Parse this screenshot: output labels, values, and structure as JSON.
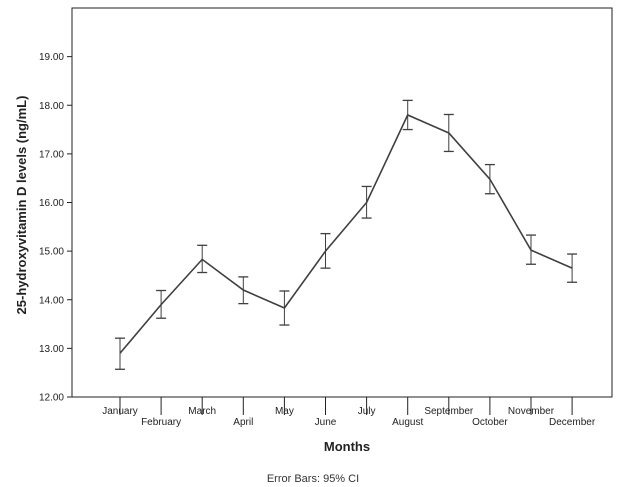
{
  "chart_data": {
    "type": "line",
    "title": "",
    "xlabel": "Months",
    "ylabel": "25-hydroxyvitamin D levels (ng/mL)",
    "categories": [
      "January",
      "February",
      "March",
      "April",
      "May",
      "June",
      "July",
      "August",
      "September",
      "October",
      "November",
      "December"
    ],
    "series": [
      {
        "values": [
          12.9,
          13.9,
          14.83,
          14.2,
          13.83,
          15.0,
          16.0,
          17.8,
          17.43,
          16.48,
          15.02,
          14.65
        ],
        "ci_lower": [
          12.57,
          13.62,
          14.56,
          13.92,
          13.48,
          14.65,
          15.68,
          17.5,
          17.05,
          16.18,
          14.73,
          14.36
        ],
        "ci_upper": [
          13.21,
          14.19,
          15.12,
          14.47,
          14.18,
          15.36,
          16.33,
          18.1,
          17.81,
          16.78,
          15.33,
          14.94
        ]
      }
    ],
    "ylim": [
      12.0,
      20.0
    ],
    "yticks": [
      "12.00",
      "13.00",
      "14.00",
      "15.00",
      "16.00",
      "17.00",
      "18.00",
      "19.00"
    ],
    "grid": false,
    "legend": "none",
    "error_bars": "95% CI",
    "footnote": "Error Bars: 95% CI",
    "line_color": "#3f3f3f"
  }
}
